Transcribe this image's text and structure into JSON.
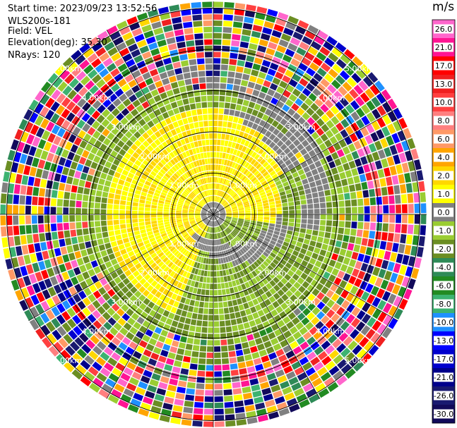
{
  "info": {
    "start_time": "Start time: 2023/09/23 13:52:56",
    "instrument": "WLS200s-181",
    "field": "Field: VEL",
    "elevation": "Elevation(deg): 35.30",
    "nrays": "NRays: 120"
  },
  "colorbar": {
    "unit": "m/s",
    "ticks": [
      "26.0",
      "21.0",
      "17.0",
      "13.0",
      "10.0",
      "8.0",
      "6.0",
      "4.0",
      "2.0",
      "1.0",
      "0.0",
      "-1.0",
      "-2.0",
      "-4.0",
      "-6.0",
      "-8.0",
      "-10.0",
      "-13.0",
      "-17.0",
      "-21.0",
      "-26.0",
      "-30.0"
    ],
    "colors": [
      "#ff66cc",
      "#ff1493",
      "#ff0000",
      "#f02020",
      "#ff4040",
      "#ff7f7f",
      "#ff9966",
      "#ffa500",
      "#ffd700",
      "#ffff00",
      "#808080",
      "#9acd32",
      "#6b8e23",
      "#2e8b57",
      "#228b22",
      "#3cb371",
      "#1e90ff",
      "#0000ff",
      "#0000cd",
      "#00008b",
      "#191970",
      "#120a5a"
    ]
  },
  "chart_data": {
    "type": "heatmap",
    "projection": "polar PPI",
    "field": "VEL",
    "units": "m/s",
    "rays": 120,
    "range_ring_labels": [
      "1.00km",
      "2.00km",
      "3.00km",
      "4.00km",
      "5.00km"
    ],
    "range_rings_km": [
      1,
      2,
      3,
      4,
      5
    ]
  }
}
